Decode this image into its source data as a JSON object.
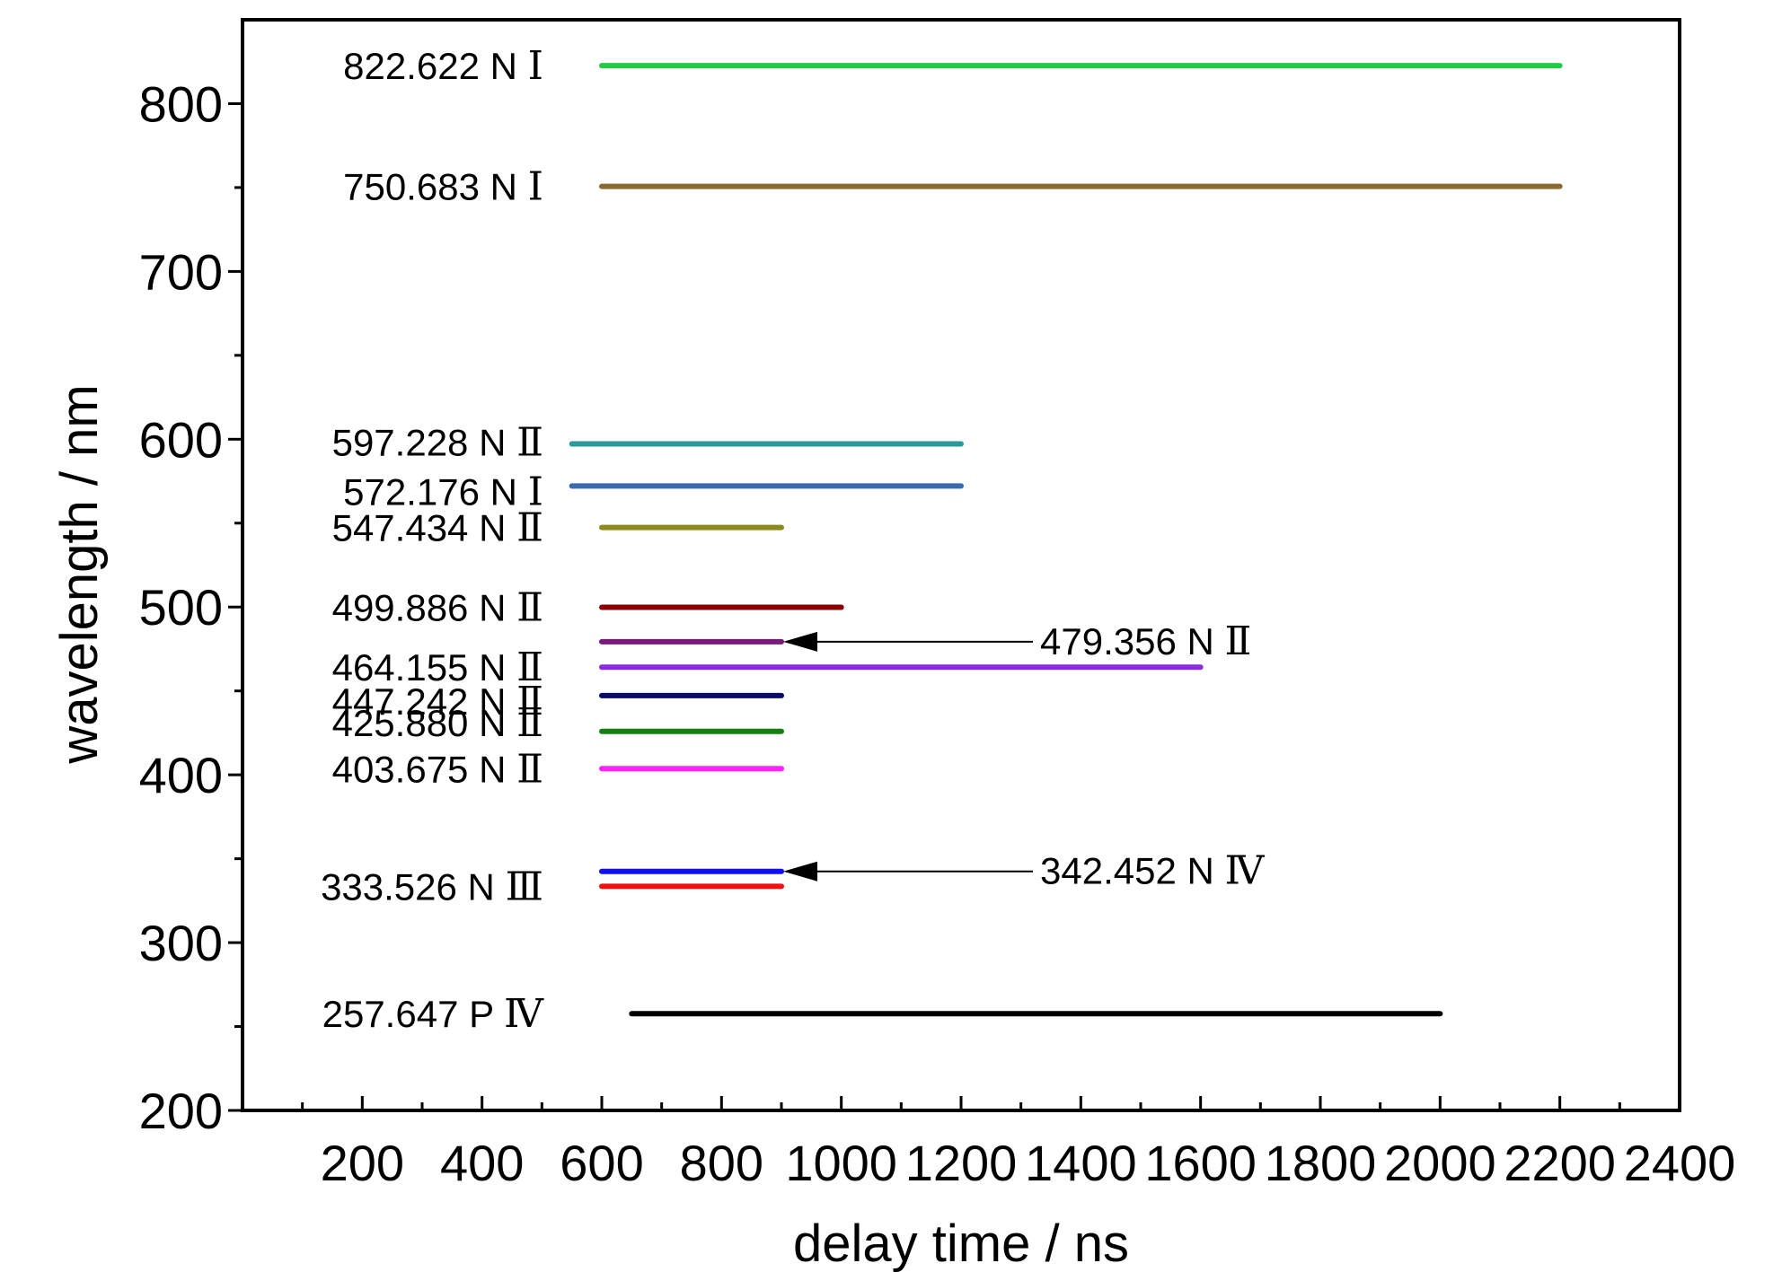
{
  "chart_data": {
    "type": "line",
    "xlabel": "delay time / ns",
    "ylabel": "wavelength / nm",
    "xlim": [
      0,
      2400
    ],
    "ylim": [
      200,
      850
    ],
    "x_ticks": [
      200,
      400,
      600,
      800,
      1000,
      1200,
      1400,
      1600,
      1800,
      2000,
      2200,
      2400
    ],
    "y_ticks": [
      200,
      300,
      400,
      500,
      600,
      700,
      800
    ],
    "grid": false,
    "legend": "none",
    "series": [
      {
        "name": "822.622 N Ⅰ",
        "wavelength": 822.622,
        "x": [
          600,
          2200
        ],
        "color": "#22cc44",
        "label_side": "left"
      },
      {
        "name": "750.683 N Ⅰ",
        "wavelength": 750.683,
        "x": [
          600,
          2200
        ],
        "color": "#8b6b2e",
        "label_side": "left"
      },
      {
        "name": "597.228 N Ⅱ",
        "wavelength": 597.228,
        "x": [
          550,
          1200
        ],
        "color": "#2a9a9a",
        "label_side": "left"
      },
      {
        "name": "572.176 N Ⅰ",
        "wavelength": 572.176,
        "x": [
          550,
          1200
        ],
        "color": "#3a6aaa",
        "label_side": "left"
      },
      {
        "name": "547.434 N Ⅱ",
        "wavelength": 547.434,
        "x": [
          600,
          900
        ],
        "color": "#8a8a1e",
        "label_side": "left"
      },
      {
        "name": "499.886 N Ⅱ",
        "wavelength": 499.886,
        "x": [
          600,
          1000
        ],
        "color": "#8b0000",
        "label_side": "left"
      },
      {
        "name": "479.356 N Ⅱ",
        "wavelength": 479.356,
        "x": [
          600,
          900
        ],
        "color": "#7a1a7a",
        "label_side": "arrow"
      },
      {
        "name": "464.155 N Ⅱ",
        "wavelength": 464.155,
        "x": [
          600,
          1600
        ],
        "color": "#8a2be2",
        "label_side": "left"
      },
      {
        "name": "447.242 N Ⅱ",
        "wavelength": 447.242,
        "x": [
          600,
          900
        ],
        "color": "#0a0a6a",
        "label_side": "left"
      },
      {
        "name": "425.880 N Ⅱ",
        "wavelength": 425.88,
        "x": [
          600,
          900
        ],
        "color": "#148014",
        "label_side": "left"
      },
      {
        "name": "403.675 N Ⅱ",
        "wavelength": 403.675,
        "x": [
          600,
          900
        ],
        "color": "#ff22ff",
        "label_side": "left"
      },
      {
        "name": "342.452 N Ⅳ",
        "wavelength": 342.452,
        "x": [
          600,
          900
        ],
        "color": "#1010ee",
        "label_side": "arrow"
      },
      {
        "name": "333.526 N Ⅲ",
        "wavelength": 333.526,
        "x": [
          600,
          900
        ],
        "color": "#ee1111",
        "label_side": "left"
      },
      {
        "name": "257.647 P Ⅳ",
        "wavelength": 257.647,
        "x": [
          650,
          2000
        ],
        "color": "#000000",
        "label_side": "left"
      }
    ]
  }
}
